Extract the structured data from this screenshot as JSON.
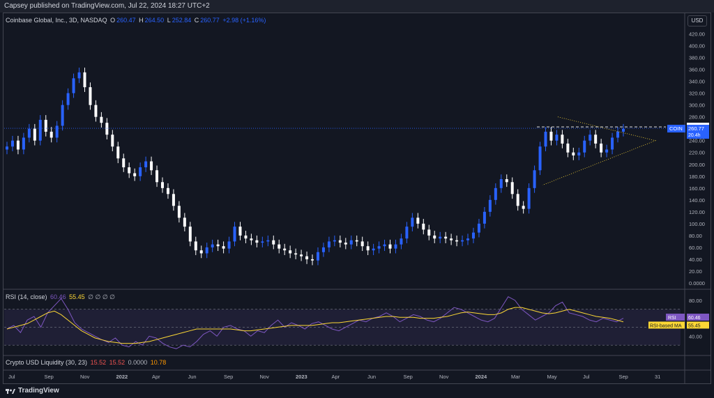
{
  "header": {
    "publisher": "Capsey published on TradingView.com, Jul 22, 2024 18:27 UTC+2"
  },
  "currency_button": "USD",
  "price_legend": {
    "symbol": "Coinbase Global, Inc., 3D, NASDAQ",
    "o_label": "O",
    "o": "260.47",
    "h_label": "H",
    "h": "264.50",
    "l_label": "L",
    "l": "252.84",
    "c_label": "C",
    "c": "260.77",
    "change": "+2.98 (+1.16%)"
  },
  "rsi_legend": {
    "label": "RSI (14, close)",
    "rsi": "60.46",
    "ma": "55.45",
    "extras": "∅ ∅ ∅ ∅"
  },
  "liq_legend": {
    "label": "Crypto USD Liquidity (30, 23)",
    "v1": "15.52",
    "v2": "15.52",
    "v3": "0.0000",
    "v4": "10.78"
  },
  "footer": {
    "brand": "TradingView"
  },
  "colors": {
    "up": "#2962ff",
    "down": "#ffffff",
    "rsi": "#7e57c2",
    "rsi_ma": "#fdd835",
    "accent": "#2962ff",
    "bg": "#131722"
  },
  "chart_data": [
    {
      "type": "candlestick",
      "title": "Coinbase Global, Inc., 3D, NASDAQ",
      "y_ticks": [
        "420.00",
        "400.00",
        "380.00",
        "360.00",
        "340.00",
        "320.00",
        "300.00",
        "280.00",
        "260.00",
        "240.00",
        "220.00",
        "200.00",
        "180.00",
        "160.00",
        "140.00",
        "120.00",
        "100.00",
        "80.00",
        "60.00",
        "40.00",
        "20.00",
        "0.0000"
      ],
      "ylim": [
        0,
        430
      ],
      "x_ticks": [
        "Jul",
        "Sep",
        "Nov",
        "2022",
        "Apr",
        "Jun",
        "Sep",
        "Nov",
        "2023",
        "Apr",
        "Jun",
        "Sep",
        "Nov",
        "2024",
        "Mar",
        "May",
        "Jul",
        "Sep",
        "31"
      ],
      "series_close": [
        230,
        240,
        225,
        245,
        260,
        240,
        275,
        255,
        245,
        265,
        300,
        320,
        345,
        355,
        330,
        300,
        280,
        270,
        250,
        230,
        210,
        195,
        185,
        180,
        195,
        205,
        190,
        170,
        160,
        150,
        130,
        110,
        95,
        70,
        55,
        50,
        60,
        65,
        62,
        58,
        70,
        95,
        80,
        75,
        72,
        68,
        70,
        72,
        65,
        58,
        55,
        50,
        48,
        45,
        40,
        38,
        52,
        60,
        70,
        72,
        68,
        65,
        72,
        70,
        62,
        55,
        58,
        62,
        65,
        58,
        65,
        75,
        95,
        110,
        100,
        90,
        80,
        75,
        78,
        75,
        72,
        70,
        72,
        75,
        85,
        100,
        120,
        140,
        160,
        175,
        170,
        150,
        130,
        125,
        160,
        190,
        230,
        255,
        240,
        250,
        235,
        220,
        215,
        220,
        240,
        250,
        235,
        220,
        225,
        245,
        255,
        260
      ],
      "markers": {
        "last_price": "260.77",
        "last_price_tag": "COIN",
        "level": "263.08",
        "sub_tag": "20.4h"
      }
    },
    {
      "type": "line",
      "title": "RSI (14, close)",
      "y_ticks": [
        "80.00",
        "40.00"
      ],
      "ylim": [
        20,
        90
      ],
      "series": [
        {
          "name": "RSI",
          "values": [
            48,
            52,
            44,
            58,
            62,
            50,
            66,
            74,
            82,
            70,
            55,
            48,
            44,
            40,
            36,
            33,
            38,
            30,
            28,
            34,
            30,
            40,
            38,
            32,
            28,
            26,
            30,
            28,
            34,
            42,
            46,
            40,
            50,
            52,
            48,
            46,
            40,
            46,
            44,
            52,
            58,
            50,
            55,
            52,
            48,
            54,
            56,
            52,
            48,
            46,
            50,
            54,
            58,
            56,
            60,
            62,
            66,
            62,
            56,
            60,
            64,
            62,
            58,
            56,
            60,
            66,
            72,
            70,
            66,
            62,
            58,
            56,
            60,
            72,
            84,
            80,
            70,
            64,
            58,
            62,
            66,
            74,
            78,
            66,
            64,
            62,
            58,
            56,
            60,
            58,
            56,
            60
          ],
          "last": "60.46"
        },
        {
          "name": "RSI-based MA",
          "values": [
            48,
            50,
            52,
            54,
            58,
            62,
            66,
            68,
            64,
            58,
            52,
            46,
            42,
            38,
            36,
            34,
            33,
            32,
            32,
            32,
            33,
            34,
            36,
            38,
            40,
            42,
            44,
            46,
            48,
            48,
            48,
            48,
            48,
            48,
            47,
            46,
            46,
            47,
            48,
            49,
            50,
            51,
            52,
            52,
            52,
            52,
            53,
            54,
            55,
            55,
            56,
            57,
            58,
            59,
            60,
            61,
            62,
            62,
            61,
            61,
            61,
            60,
            60,
            60,
            61,
            62,
            64,
            66,
            67,
            66,
            65,
            64,
            64,
            66,
            70,
            72,
            72,
            70,
            68,
            66,
            65,
            66,
            68,
            70,
            68,
            66,
            64,
            62,
            61,
            60,
            58,
            56
          ],
          "last": "55.45"
        }
      ],
      "levels": [
        70,
        50,
        30
      ]
    }
  ]
}
